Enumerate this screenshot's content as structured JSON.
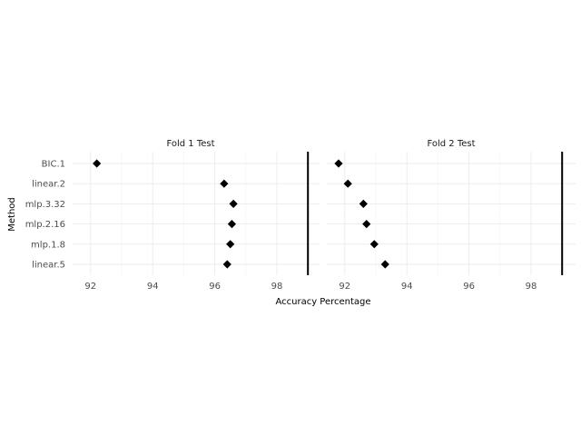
{
  "chart_data": {
    "type": "scatter",
    "marker": "diamond",
    "xlabel": "Accuracy Percentage",
    "ylabel": "Method",
    "xlim": [
      91.4,
      99.5
    ],
    "x_ticks": [
      92,
      94,
      96,
      98
    ],
    "categories": [
      "BIC.1",
      "linear.2",
      "mlp.3.32",
      "mlp.2.16",
      "mlp.1.8",
      "linear.5"
    ],
    "reference_line": 99,
    "grid": true,
    "colors": {
      "marker": "#000000",
      "grid": "#ebebeb",
      "text": "#4d4d4d"
    },
    "facets": [
      {
        "label": "Fold 1 Test",
        "values": [
          92.2,
          96.3,
          96.6,
          96.55,
          96.5,
          96.4
        ]
      },
      {
        "label": "Fold 2 Test",
        "values": [
          91.8,
          92.1,
          92.6,
          92.7,
          92.95,
          93.3
        ]
      }
    ]
  }
}
